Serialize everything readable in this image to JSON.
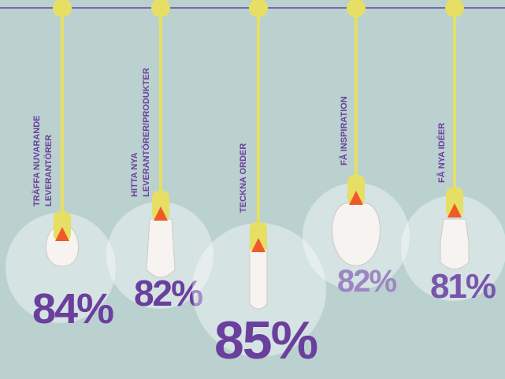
{
  "chart_data": {
    "type": "bulb",
    "categories": [
      [
        "TRÄFFA NUVARANDE",
        "LEVERANTÖRER"
      ],
      [
        "HITTA NYA",
        "LEVERANTÖRER/PRODUKTER"
      ],
      [
        "TECKNA ORDER"
      ],
      [
        "FÅ INSPIRATION"
      ],
      [
        "FÅ NYA IDÉER"
      ]
    ],
    "values": [
      84,
      82,
      85,
      82,
      81
    ],
    "value_labels": [
      "84%",
      "82%",
      "85%",
      "82%",
      "81%"
    ],
    "colors": [
      "#6a3f9e",
      "#6a3f9e",
      "#6a3f9e",
      "#9c86c2",
      "#7a55ad"
    ]
  }
}
